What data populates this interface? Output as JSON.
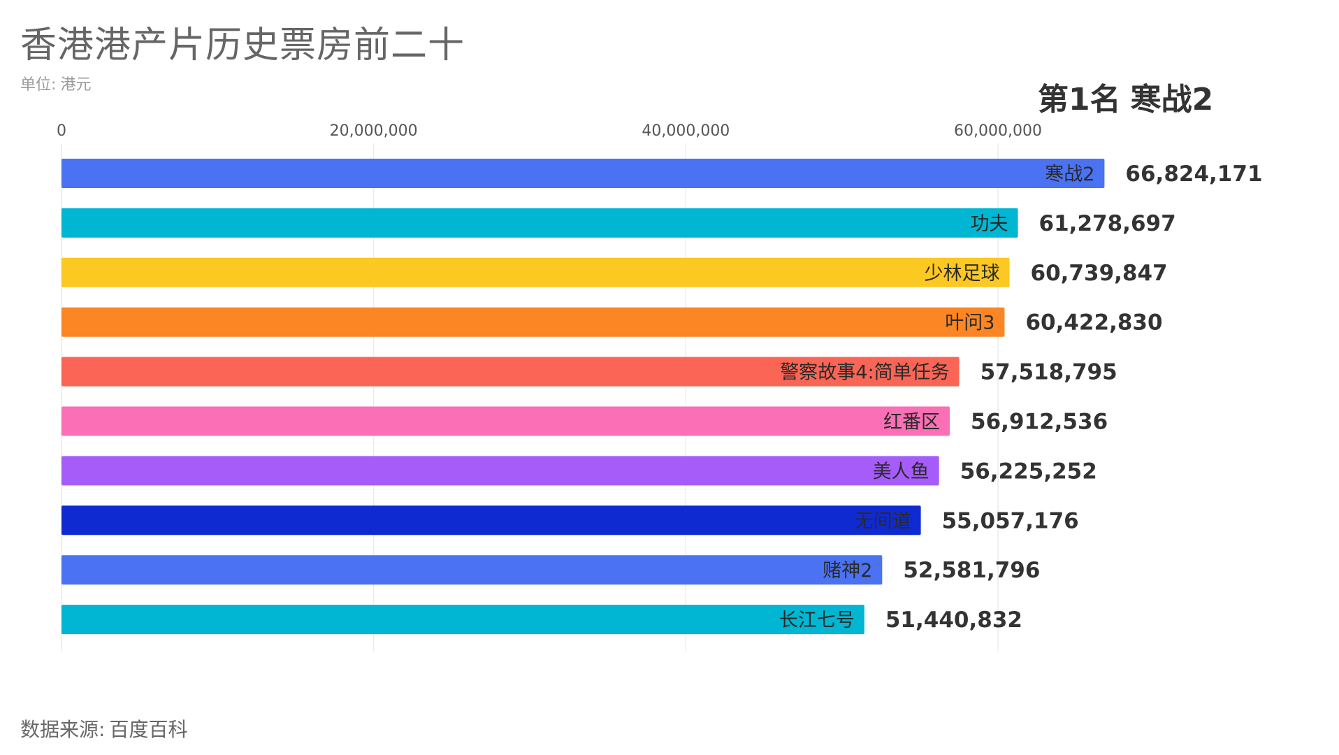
{
  "chart_data": {
    "type": "bar",
    "orientation": "horizontal",
    "title": "香港港产片历史票房前二十",
    "unit_label": "单位",
    "unit_value": "港元",
    "rank_banner": {
      "prefix": "第1名",
      "name": "寒战2"
    },
    "source_label": "数据来源",
    "source_value": "百度百科",
    "xlim": [
      0,
      60000000
    ],
    "xticks": [
      {
        "value": 0,
        "label": "0"
      },
      {
        "value": 20000000,
        "label": "20,000,000"
      },
      {
        "value": 40000000,
        "label": "40,000,000"
      },
      {
        "value": 60000000,
        "label": "60,000,000"
      }
    ],
    "grid": true,
    "tick_position": "top",
    "categories": [
      "寒战2",
      "功夫",
      "少林足球",
      "叶问3",
      "警察故事4:简单任务",
      "红番区",
      "美人鱼",
      "无间道",
      "赌神2",
      "长江七号"
    ],
    "values": [
      66824171,
      61278697,
      60739847,
      60422830,
      57518795,
      56912536,
      56225252,
      55057176,
      52581796,
      51440832
    ],
    "value_labels": [
      "66,824,171",
      "61,278,697",
      "60,739,847",
      "60,422,830",
      "57,518,795",
      "56,912,536",
      "56,225,252",
      "55,057,176",
      "52,581,796",
      "51,440,832"
    ],
    "colors": [
      "#4a72f2",
      "#00b6d3",
      "#fcc822",
      "#fb8623",
      "#fb6556",
      "#fa6fb5",
      "#a55cf9",
      "#0f2ad0",
      "#4a72f2",
      "#00b6d3"
    ]
  }
}
